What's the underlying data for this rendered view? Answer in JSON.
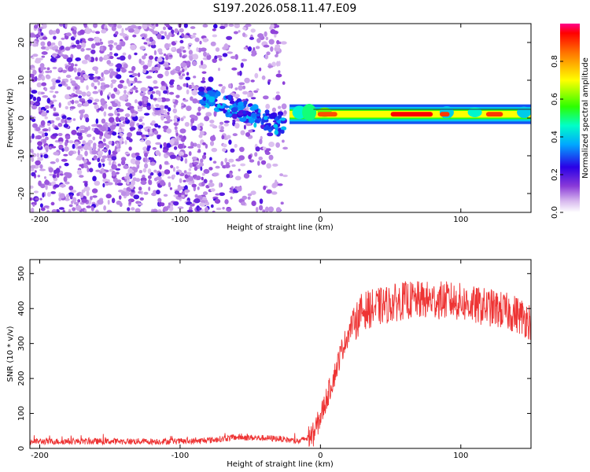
{
  "title": "S197.2026.058.11.47.E09",
  "chart_data": [
    {
      "type": "heatmap",
      "panel": "spectrogram",
      "xlabel": "Height of straight line (km)",
      "ylabel": "Frequency (Hz)",
      "xlim": [
        -207,
        150
      ],
      "ylim": [
        -25,
        25
      ],
      "xticks": [
        -200,
        -100,
        0,
        100
      ],
      "yticks": [
        -20,
        -10,
        0,
        10,
        20
      ],
      "colorbar": {
        "label": "Normalized spectral amplitude",
        "range": [
          0.0,
          1.0
        ],
        "ticks": [
          0.0,
          0.2,
          0.4,
          0.6,
          0.8
        ],
        "tick_labels": [
          "0.0",
          "0.2",
          "0.4",
          "0.6",
          "0.8"
        ]
      },
      "regions": [
        {
          "x_range": [
            -207,
            -25
          ],
          "description": "broadband noise (amplitude ~0.1-0.25)"
        },
        {
          "x_range": [
            -85,
            -25
          ],
          "description": "drifting signal trace near 0 to 7 Hz"
        },
        {
          "x_range": [
            -25,
            150
          ],
          "description": "narrow carrier line near 1 Hz, amplitude up to ~0.95"
        }
      ]
    },
    {
      "type": "line",
      "panel": "snr",
      "xlabel": "Height of straight line (km)",
      "ylabel": "SNR (10 * v/v)",
      "xlim": [
        -207,
        150
      ],
      "ylim": [
        0,
        540
      ],
      "xticks": [
        -200,
        -100,
        0,
        100
      ],
      "yticks": [
        0,
        100,
        200,
        300,
        400,
        500
      ],
      "series": [
        {
          "name": "SNR",
          "color": "#ee3333",
          "x": [
            -207,
            -190,
            -170,
            -150,
            -130,
            -110,
            -90,
            -75,
            -60,
            -45,
            -30,
            -15,
            -5,
            0,
            5,
            10,
            15,
            20,
            25,
            30,
            40,
            50,
            60,
            70,
            80,
            90,
            100,
            110,
            120,
            130,
            140,
            150
          ],
          "y": [
            20,
            20,
            20,
            20,
            20,
            20,
            20,
            25,
            32,
            30,
            28,
            20,
            40,
            90,
            150,
            210,
            280,
            330,
            380,
            410,
            420,
            430,
            440,
            440,
            440,
            440,
            435,
            425,
            420,
            410,
            400,
            380
          ]
        }
      ]
    }
  ]
}
